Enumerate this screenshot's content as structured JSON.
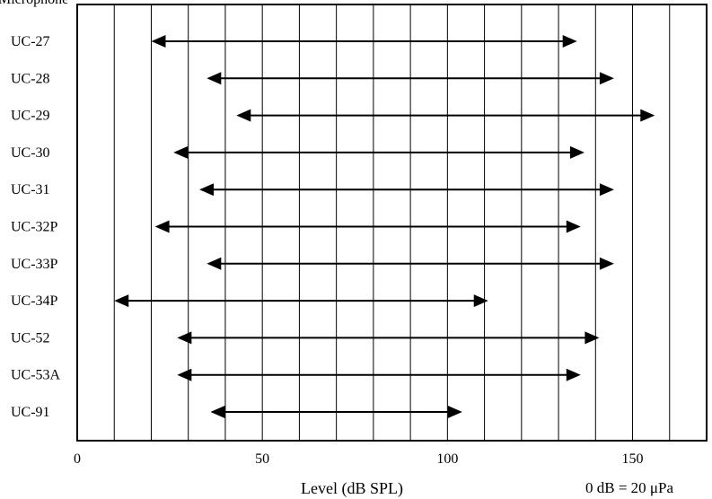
{
  "corner_label": "Microphone",
  "unit_note": "0 dB = 20 μPa",
  "chart_data": {
    "type": "range-bar",
    "xlabel": "Level (dB SPL)",
    "xlim": [
      0,
      170
    ],
    "xticks": [
      0,
      50,
      100,
      150
    ],
    "xtick_labels": [
      "0",
      "50",
      "100",
      "150"
    ],
    "vertical_gridlines": [
      10,
      20,
      30,
      40,
      50,
      60,
      70,
      80,
      90,
      100,
      110,
      120,
      130,
      140,
      150,
      160
    ],
    "legend": "none",
    "categories": [
      "UC-27",
      "UC-28",
      "UC-29",
      "UC-30",
      "UC-31",
      "UC-32P",
      "UC-33P",
      "UC-34P",
      "UC-52",
      "UC-53A",
      "UC-91"
    ],
    "ranges": [
      [
        20,
        135
      ],
      [
        35,
        145
      ],
      [
        43,
        156
      ],
      [
        26,
        137
      ],
      [
        33,
        145
      ],
      [
        21,
        136
      ],
      [
        35,
        145
      ],
      [
        10,
        111
      ],
      [
        27,
        141
      ],
      [
        27,
        136
      ],
      [
        36,
        104
      ]
    ]
  }
}
